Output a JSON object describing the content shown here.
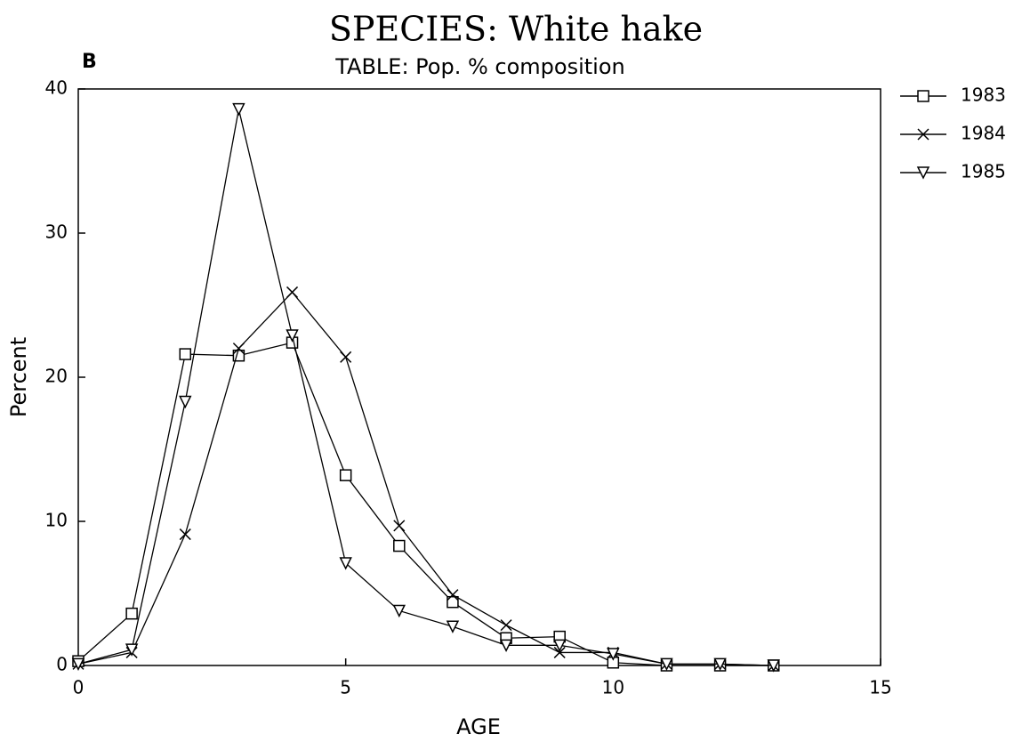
{
  "chart_data": {
    "type": "line",
    "title": "SPECIES: White hake",
    "subtitle": "TABLE: Pop. % composition",
    "panel_label": "B",
    "x_label": "AGE",
    "y_label": "Percent",
    "x": [
      0,
      1,
      2,
      3,
      4,
      5,
      6,
      7,
      8,
      9,
      10,
      11,
      12,
      13
    ],
    "series": [
      {
        "name": "1983",
        "color": "#000000",
        "marker": "square",
        "values": [
          0.3,
          3.6,
          21.6,
          21.5,
          22.4,
          13.2,
          8.3,
          4.4,
          1.9,
          2.0,
          0.2,
          0,
          0,
          0
        ]
      },
      {
        "name": "1984",
        "color": "#000000",
        "marker": "x",
        "values": [
          0.1,
          0.9,
          9.1,
          22,
          25.9,
          21.4,
          9.7,
          4.9,
          2.8,
          0.9,
          0.9,
          0.1,
          0.1,
          0
        ]
      },
      {
        "name": "1985",
        "color": "#000000",
        "marker": "triangle-down",
        "values": [
          0.1,
          1.1,
          18.3,
          38.6,
          22.9,
          7.1,
          3.8,
          2.7,
          1.4,
          1.4,
          0.8,
          0.1,
          0.1,
          0
        ]
      }
    ],
    "xlim": [
      0,
      15
    ],
    "xticks": [
      0,
      5,
      10,
      15
    ],
    "ylim": [
      0,
      40
    ],
    "yticks": [
      0,
      10,
      20,
      30,
      40
    ],
    "grid": false,
    "legend": "right"
  }
}
